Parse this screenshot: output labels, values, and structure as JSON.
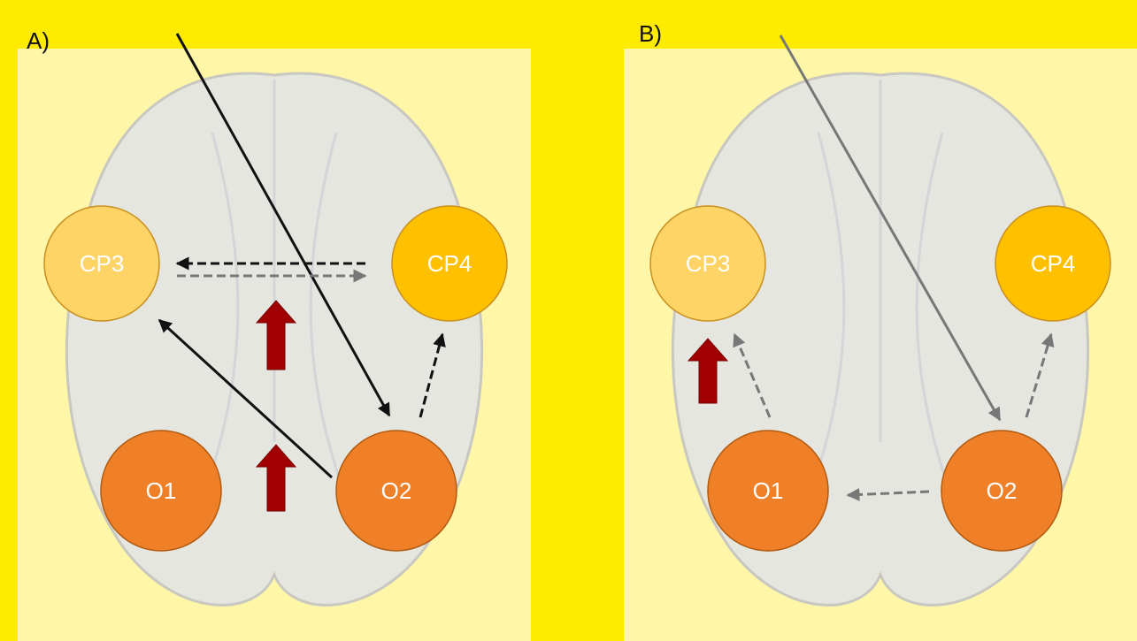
{
  "panels": [
    {
      "label": "A)",
      "nodes": [
        {
          "label": "CP3"
        },
        {
          "label": "CP4"
        },
        {
          "label": "O1"
        },
        {
          "label": "O2"
        }
      ]
    },
    {
      "label": "B)",
      "nodes": [
        {
          "label": "CP3"
        },
        {
          "label": "CP4"
        },
        {
          "label": "O1"
        },
        {
          "label": "O2"
        }
      ]
    }
  ]
}
